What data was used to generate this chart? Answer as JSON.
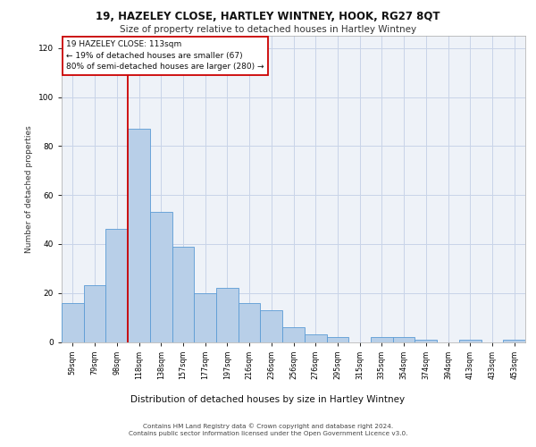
{
  "title1": "19, HAZELEY CLOSE, HARTLEY WINTNEY, HOOK, RG27 8QT",
  "title2": "Size of property relative to detached houses in Hartley Wintney",
  "xlabel": "Distribution of detached houses by size in Hartley Wintney",
  "ylabel": "Number of detached properties",
  "categories": [
    "59sqm",
    "79sqm",
    "98sqm",
    "118sqm",
    "138sqm",
    "157sqm",
    "177sqm",
    "197sqm",
    "216sqm",
    "236sqm",
    "256sqm",
    "276sqm",
    "295sqm",
    "315sqm",
    "335sqm",
    "354sqm",
    "374sqm",
    "394sqm",
    "413sqm",
    "433sqm",
    "453sqm"
  ],
  "values": [
    16,
    23,
    46,
    87,
    53,
    39,
    20,
    22,
    16,
    13,
    6,
    3,
    2,
    0,
    2,
    2,
    1,
    0,
    1,
    0,
    1
  ],
  "bar_color": "#b8cfe8",
  "bar_edge_color": "#5b9bd5",
  "grid_color": "#c8d4e8",
  "background_color": "#eef2f8",
  "vline_color": "#cc0000",
  "annotation_box_text": "19 HAZELEY CLOSE: 113sqm\n← 19% of detached houses are smaller (67)\n80% of semi-detached houses are larger (280) →",
  "ylim": [
    0,
    125
  ],
  "yticks": [
    0,
    20,
    40,
    60,
    80,
    100,
    120
  ],
  "footer1": "Contains HM Land Registry data © Crown copyright and database right 2024.",
  "footer2": "Contains public sector information licensed under the Open Government Licence v3.0."
}
